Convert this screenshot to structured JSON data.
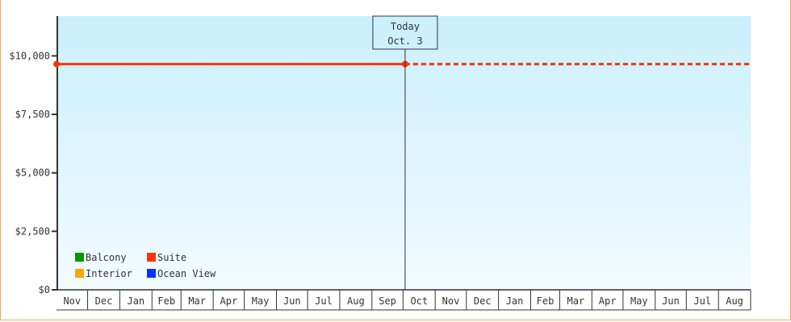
{
  "chart_data": {
    "type": "line",
    "title": "",
    "xlabel": "",
    "ylabel": "",
    "ylim": [
      0,
      11700
    ],
    "y_ticks": [
      0,
      2500,
      5000,
      7500,
      10000
    ],
    "y_tick_labels": [
      "$0",
      "$2,500",
      "$5,000",
      "$7,500",
      "$10,000"
    ],
    "x_tick_labels": [
      "Nov",
      "Dec",
      "Jan",
      "Feb",
      "Mar",
      "Apr",
      "May",
      "Jun",
      "Jul",
      "Aug",
      "Sep",
      "Oct",
      "Nov",
      "Dec",
      "Jan",
      "Feb",
      "Mar",
      "Apr",
      "May",
      "Jun",
      "Jul",
      "Aug"
    ],
    "grid": false,
    "legend_placement": "bottom-left",
    "today_marker": {
      "line1": "Today",
      "line2": "Oct. 3"
    },
    "series": [
      {
        "name": "Balcony",
        "color": "#009900",
        "points": []
      },
      {
        "name": "Suite",
        "color": "#ff3300",
        "points": [
          [
            "Nov 1",
            9650
          ],
          [
            "Oct 3",
            9650
          ]
        ],
        "projection": "dashed to end of axis"
      },
      {
        "name": "Interior",
        "color": "#ffa500",
        "points": []
      },
      {
        "name": "Ocean View",
        "color": "#0033ff",
        "points": []
      }
    ]
  }
}
